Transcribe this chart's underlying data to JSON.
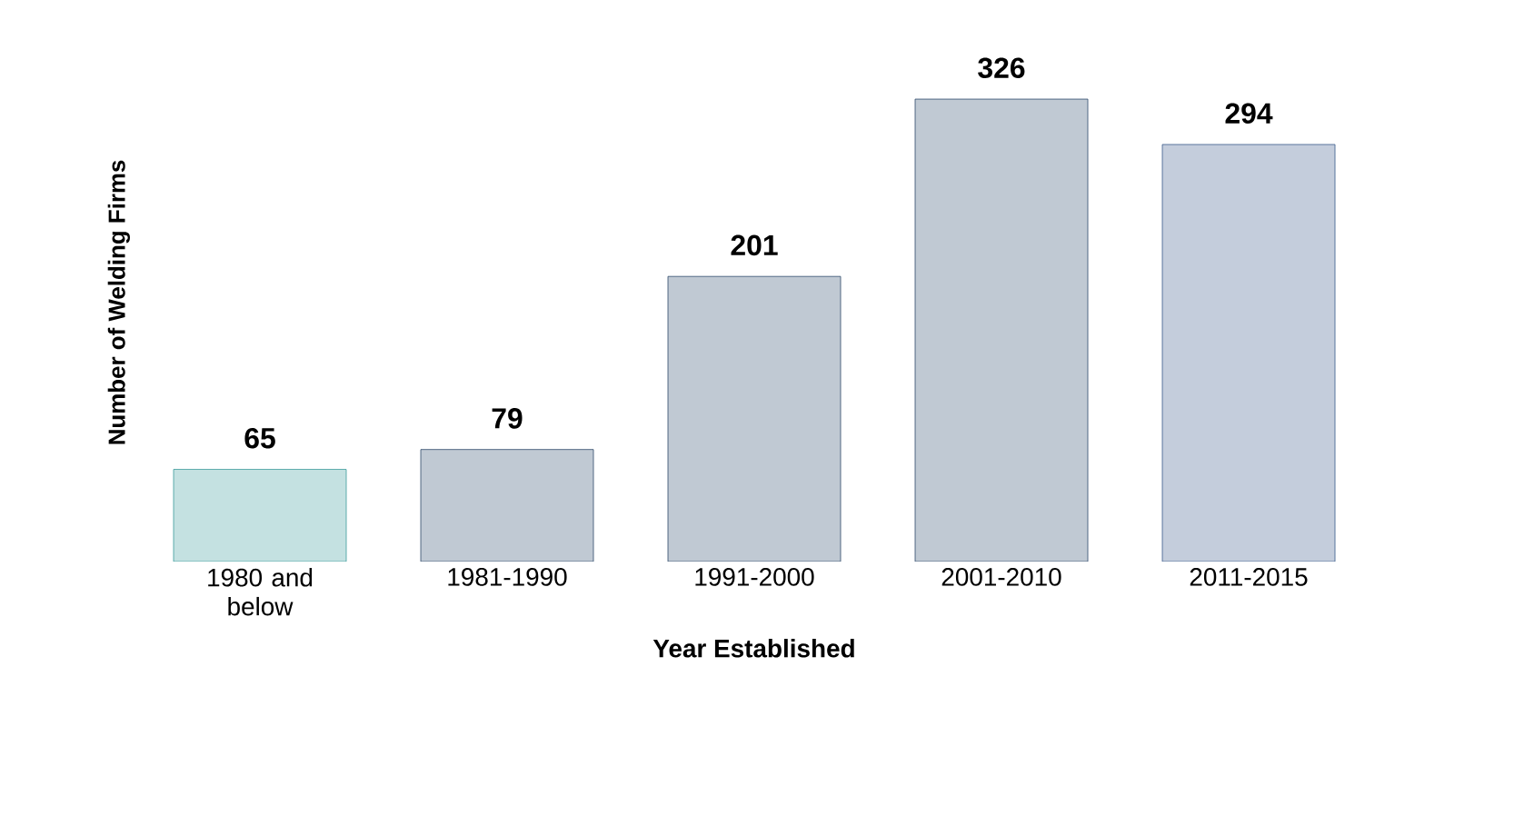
{
  "chart_data": {
    "type": "bar",
    "xlabel": "Year Established",
    "ylabel": "Number of Welding Firms",
    "categories": [
      "1980 and below",
      "1981-1990",
      "1991-2000",
      "2001-2010",
      "2011-2015"
    ],
    "values": [
      65,
      79,
      201,
      326,
      294
    ],
    "colors": [
      "#3a9a9a",
      "#2e4a6b",
      "#2e4a6b",
      "#2e4a6b",
      "#3a5a8a"
    ],
    "data_labels": true
  }
}
